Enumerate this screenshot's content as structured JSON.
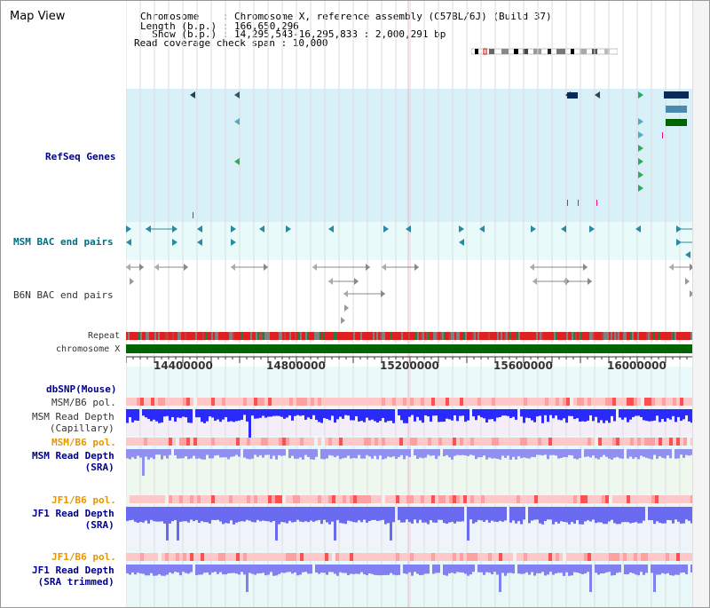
{
  "app": {
    "title": "Map View"
  },
  "info": {
    "line1": "Chromosome    : Chromosome X, reference assembly (C57BL/6J) (Build 37)",
    "line2": "Length (b.p.) : 166,650,296",
    "line3": "  Show (b.p.) : 14,295,543-16,295,833 : 2,000,291 bp",
    "line4": "Read coverage check span : 10,000"
  },
  "tracks": {
    "refseq": "RefSeq Genes",
    "msm_bac": "MSM BAC end pairs",
    "b6n_bac": "B6N BAC end pairs",
    "repeat": "Repeat",
    "chromosome": "chromosome X",
    "dbsnp": "dbSNP(Mouse)",
    "msm_b6_pol_1": "MSM/B6 pol.",
    "msm_read_depth_cap": "MSM Read Depth\n(Capillary)",
    "msm_b6_pol_2": "MSM/B6 pol.",
    "msm_read_depth_sra": "MSM Read Depth\n(SRA)",
    "jf1_b6_pol_1": "JF1/B6 pol.",
    "jf1_read_depth_sra": "JF1 Read Depth\n(SRA)",
    "jf1_b6_pol_2": "JF1/B6 pol.",
    "jf1_read_depth_trim": "JF1 Read Depth\n(SRA trimmed)"
  },
  "axis": {
    "ticks": [
      "14400000",
      "14800000",
      "15200000",
      "15600000",
      "16000000"
    ]
  },
  "colors": {
    "refseq_bg": "#d8f0f8",
    "bac_bg": "#e8fafa",
    "chrom_green": "#006400",
    "depth_blue": "#2020ff",
    "pol_red": "#ff2020"
  }
}
